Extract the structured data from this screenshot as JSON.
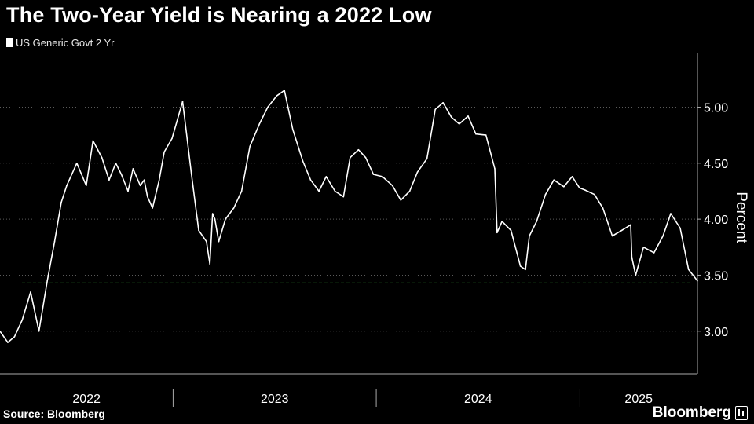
{
  "title": "The Two-Year Yield is Nearing a 2022 Low",
  "legend": {
    "label": "US Generic Govt 2 Yr"
  },
  "source": "Source: Bloomberg",
  "brand": "Bloomberg",
  "colors": {
    "background": "#000000",
    "line": "#ffffff",
    "grid": "#5a5a5a",
    "reference": "#3cbf3c"
  },
  "chart_data": {
    "type": "line",
    "ylabel": "Percent",
    "ylim": [
      2.62,
      5.48
    ],
    "yticks": [
      3.0,
      3.5,
      4.0,
      4.5,
      5.0
    ],
    "ytick_labels": [
      "3.00",
      "3.50",
      "4.00",
      "4.50",
      "5.00"
    ],
    "xlim": [
      "2022-02-24",
      "2025-07-31"
    ],
    "xtick_labels": [
      "2022",
      "2023",
      "2024",
      "2025"
    ],
    "year_boundaries": [
      "2023-01-01",
      "2024-01-01",
      "2025-01-01"
    ],
    "grid": true,
    "reference_line": {
      "value": 3.43,
      "style": "dashed"
    },
    "series": [
      {
        "name": "US Generic Govt 2 Yr",
        "x": [
          "2022-02-24",
          "2022-03-10",
          "2022-03-22",
          "2022-04-05",
          "2022-04-20",
          "2022-05-05",
          "2022-05-20",
          "2022-06-02",
          "2022-06-14",
          "2022-06-24",
          "2022-07-12",
          "2022-07-29",
          "2022-08-10",
          "2022-08-26",
          "2022-09-08",
          "2022-09-20",
          "2022-09-30",
          "2022-10-12",
          "2022-10-21",
          "2022-11-03",
          "2022-11-10",
          "2022-11-16",
          "2022-11-25",
          "2022-12-07",
          "2022-12-16",
          "2022-12-30",
          "2023-01-18",
          "2023-02-03",
          "2023-02-16",
          "2023-03-02",
          "2023-03-08",
          "2023-03-13",
          "2023-03-17",
          "2023-03-24",
          "2023-04-05",
          "2023-04-20",
          "2023-05-04",
          "2023-05-19",
          "2023-06-05",
          "2023-06-20",
          "2023-07-06",
          "2023-07-20",
          "2023-08-04",
          "2023-08-22",
          "2023-09-05",
          "2023-09-20",
          "2023-10-03",
          "2023-10-19",
          "2023-11-03",
          "2023-11-15",
          "2023-11-30",
          "2023-12-13",
          "2023-12-27",
          "2024-01-12",
          "2024-01-30",
          "2024-02-14",
          "2024-03-01",
          "2024-03-15",
          "2024-04-01",
          "2024-04-16",
          "2024-04-30",
          "2024-05-15",
          "2024-05-29",
          "2024-06-14",
          "2024-06-28",
          "2024-07-16",
          "2024-08-01",
          "2024-08-05",
          "2024-08-14",
          "2024-08-30",
          "2024-09-16",
          "2024-09-25",
          "2024-10-02",
          "2024-10-15",
          "2024-10-31",
          "2024-11-15",
          "2024-12-03",
          "2024-12-18",
          "2024-12-31",
          "2025-01-10",
          "2025-01-27",
          "2025-02-11",
          "2025-02-28",
          "2025-03-17",
          "2025-04-02",
          "2025-04-04",
          "2025-04-11",
          "2025-04-25",
          "2025-05-14",
          "2025-05-30",
          "2025-06-13",
          "2025-06-30",
          "2025-07-15",
          "2025-07-31"
        ],
        "values": [
          3.0,
          2.9,
          2.95,
          3.1,
          3.35,
          3.0,
          3.45,
          3.8,
          4.15,
          4.3,
          4.5,
          4.3,
          4.7,
          4.55,
          4.35,
          4.5,
          4.4,
          4.25,
          4.45,
          4.3,
          4.35,
          4.2,
          4.1,
          4.35,
          4.6,
          4.72,
          5.05,
          4.4,
          3.9,
          3.8,
          3.6,
          4.05,
          4.0,
          3.8,
          4.0,
          4.1,
          4.25,
          4.65,
          4.85,
          5.0,
          5.1,
          5.15,
          4.8,
          4.52,
          4.35,
          4.25,
          4.38,
          4.25,
          4.2,
          4.55,
          4.62,
          4.55,
          4.4,
          4.38,
          4.3,
          4.17,
          4.25,
          4.42,
          4.54,
          4.98,
          5.04,
          4.91,
          4.85,
          4.92,
          4.76,
          4.75,
          4.45,
          3.88,
          3.98,
          3.9,
          3.58,
          3.55,
          3.85,
          3.98,
          4.22,
          4.35,
          4.29,
          4.38,
          4.28,
          4.26,
          4.22,
          4.1,
          3.85,
          3.9,
          3.95,
          3.66,
          3.5,
          3.75,
          3.7,
          3.85,
          4.05,
          3.92,
          3.55,
          3.45
        ]
      }
    ]
  }
}
